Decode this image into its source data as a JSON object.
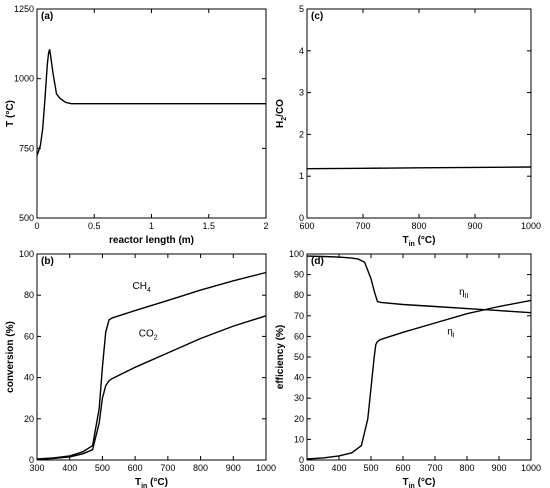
{
  "chart_data": [
    {
      "panel": "(a)",
      "type": "line",
      "xlabel": "reactor length (m)",
      "ylabel": "T (°C)",
      "xlim": [
        0,
        2
      ],
      "ylim": [
        500,
        1250
      ],
      "xticks": [
        0,
        0.5,
        1,
        1.5,
        2
      ],
      "yticks": [
        500,
        750,
        1000,
        1250
      ],
      "xtick_labels": [
        "0",
        "0.5",
        "1",
        "1.5",
        "2"
      ],
      "ytick_labels": [
        "500",
        "750",
        "1000",
        "1250"
      ],
      "series": [
        {
          "x": [
            0,
            0.01,
            0.03,
            0.05,
            0.07,
            0.09,
            0.1,
            0.11,
            0.12,
            0.14,
            0.17,
            0.2,
            0.25,
            0.3,
            0.4,
            0.6,
            1.0,
            1.5,
            2.0
          ],
          "y": [
            725,
            735,
            760,
            820,
            930,
            1050,
            1090,
            1105,
            1080,
            1020,
            945,
            930,
            915,
            910,
            910,
            910,
            910,
            910,
            910
          ]
        }
      ],
      "annotations": []
    },
    {
      "panel": "(c)",
      "type": "line",
      "xlabel": "T",
      "xlabel_sub": "in",
      "xlabel_tail": " (°C)",
      "ylabel": "H",
      "ylabel_sub": "2",
      "ylabel_tail": "/CO",
      "xlim": [
        600,
        1000
      ],
      "ylim": [
        0,
        5
      ],
      "xticks": [
        600,
        700,
        800,
        900,
        1000
      ],
      "yticks": [
        0,
        1,
        2,
        3,
        4,
        5
      ],
      "xtick_labels": [
        "600",
        "700",
        "800",
        "900",
        "1000"
      ],
      "ytick_labels": [
        "0",
        "1",
        "2",
        "3",
        "4",
        "5"
      ],
      "series": [
        {
          "x": [
            600,
            700,
            800,
            900,
            1000
          ],
          "y": [
            1.18,
            1.19,
            1.2,
            1.21,
            1.22
          ]
        }
      ],
      "annotations": []
    },
    {
      "panel": "(b)",
      "type": "line",
      "xlabel": "T",
      "xlabel_sub": "in",
      "xlabel_tail": " (°C)",
      "ylabel": "conversion (%)",
      "xlim": [
        300,
        1000
      ],
      "ylim": [
        0,
        100
      ],
      "xticks": [
        300,
        400,
        500,
        600,
        700,
        800,
        900,
        1000
      ],
      "yticks": [
        0,
        20,
        40,
        60,
        80,
        100
      ],
      "xtick_labels": [
        "300",
        "400",
        "500",
        "600",
        "700",
        "800",
        "900",
        "1000"
      ],
      "ytick_labels": [
        "0",
        "20",
        "40",
        "60",
        "80",
        "100"
      ],
      "series": [
        {
          "x": [
            300,
            350,
            400,
            440,
            470,
            490,
            500,
            510,
            520,
            530,
            600,
            700,
            800,
            900,
            1000
          ],
          "y": [
            0.5,
            1,
            2,
            4,
            7,
            25,
            45,
            62,
            68,
            69,
            72.5,
            77.5,
            82.5,
            87,
            91
          ]
        },
        {
          "x": [
            300,
            350,
            400,
            440,
            470,
            490,
            500,
            510,
            520,
            530,
            600,
            700,
            800,
            900,
            1000
          ],
          "y": [
            0.3,
            0.8,
            1.5,
            3,
            5,
            18,
            30,
            36,
            38.5,
            39.5,
            45,
            52,
            59,
            65,
            70
          ]
        }
      ],
      "annotations": [
        {
          "text": "CH",
          "sub": "4",
          "x": 620,
          "y": 83
        },
        {
          "text": "CO",
          "sub": "2",
          "x": 640,
          "y": 60
        }
      ]
    },
    {
      "panel": "(d)",
      "type": "line",
      "xlabel": "T",
      "xlabel_sub": "in",
      "xlabel_tail": " (°C)",
      "ylabel": "efficiency (%)",
      "xlim": [
        300,
        1000
      ],
      "ylim": [
        0,
        100
      ],
      "xticks": [
        300,
        400,
        500,
        600,
        700,
        800,
        900,
        1000
      ],
      "yticks": [
        0,
        10,
        20,
        30,
        40,
        50,
        60,
        70,
        80,
        90,
        100
      ],
      "xtick_labels": [
        "300",
        "400",
        "500",
        "600",
        "700",
        "800",
        "900",
        "1000"
      ],
      "ytick_labels": [
        "0",
        "10",
        "20",
        "30",
        "40",
        "50",
        "60",
        "70",
        "80",
        "90",
        "100"
      ],
      "series": [
        {
          "x": [
            300,
            350,
            400,
            440,
            460,
            480,
            500,
            510,
            520,
            530,
            600,
            700,
            800,
            900,
            1000
          ],
          "y": [
            99,
            98.8,
            98.5,
            98,
            97.5,
            96,
            88,
            82,
            77,
            76.5,
            75.5,
            74.5,
            73.5,
            72.5,
            71.5
          ]
        },
        {
          "x": [
            300,
            350,
            400,
            440,
            470,
            490,
            500,
            510,
            515,
            520,
            530,
            600,
            700,
            800,
            900,
            1000
          ],
          "y": [
            0.5,
            1,
            2,
            3.5,
            7,
            20,
            35,
            50,
            56,
            57.5,
            58.5,
            62,
            66.5,
            71,
            74.5,
            77.5
          ]
        }
      ],
      "annotations": [
        {
          "text": "η",
          "sub": "II",
          "x": 790,
          "y": 80
        },
        {
          "text": "η",
          "sub": "I",
          "x": 750,
          "y": 61
        }
      ]
    }
  ]
}
